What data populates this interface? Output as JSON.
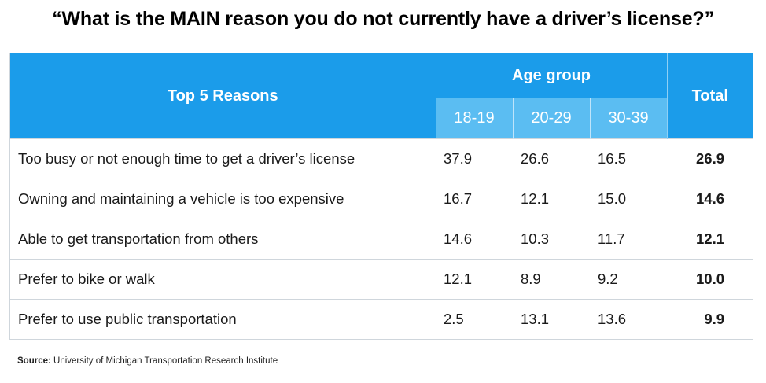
{
  "title": "“What is the MAIN reason you do not currently have a driver’s license?”",
  "chart_data": {
    "type": "table",
    "row_header": "Top 5 Reasons",
    "group_header": "Age group",
    "columns": [
      "18-19",
      "20-29",
      "30-39"
    ],
    "total_header": "Total",
    "rows": [
      {
        "reason": "Too busy or not enough time to get a driver’s license",
        "values": [
          "37.9",
          "26.6",
          "16.5"
        ],
        "total": "26.9"
      },
      {
        "reason": "Owning and maintaining a vehicle is too expensive",
        "values": [
          "16.7",
          "12.1",
          "15.0"
        ],
        "total": "14.6"
      },
      {
        "reason": "Able to get transportation from others",
        "values": [
          "14.6",
          "10.3",
          "11.7"
        ],
        "total": "12.1"
      },
      {
        "reason": "Prefer to bike or walk",
        "values": [
          "12.1",
          "8.9",
          "9.2"
        ],
        "total": "10.0"
      },
      {
        "reason": "Prefer to use public transportation",
        "values": [
          "2.5",
          "13.1",
          "13.6"
        ],
        "total": "9.9"
      }
    ]
  },
  "source": {
    "label": "Source:",
    "text": "University of Michigan Transportation Research Institute"
  },
  "colors": {
    "header_dark": "#1b9cea",
    "header_light": "#5bbdf2"
  }
}
